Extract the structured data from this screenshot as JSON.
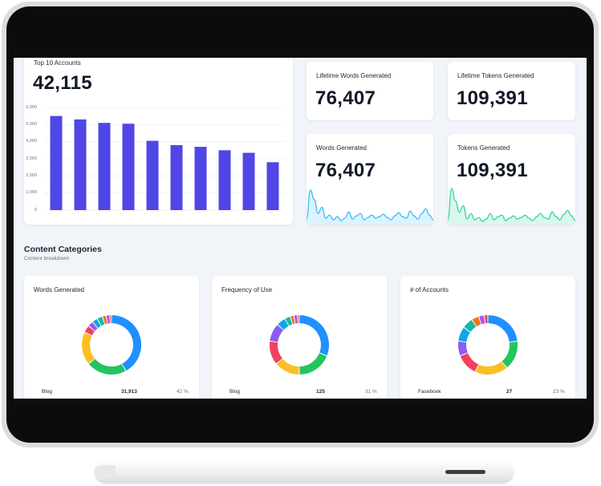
{
  "top_accounts": {
    "title": "Top 10 Accounts",
    "total": "42,115"
  },
  "stats": {
    "lifetime_words_title": "Lifetime Words Generated",
    "lifetime_words_value": "76,407",
    "lifetime_tokens_title": "Lifetime Tokens Generated",
    "lifetime_tokens_value": "109,391",
    "words_title": "Words Generated",
    "words_value": "76,407",
    "tokens_title": "Tokens Generated",
    "tokens_value": "109,391"
  },
  "content": {
    "title": "Content Categories",
    "subtitle": "Content breakdown",
    "cards": [
      {
        "title": "Words Generated",
        "row_label": "Blog",
        "row_value": "31,913",
        "row_pct": "42 %"
      },
      {
        "title": "Frequency of Use",
        "row_label": "Blog",
        "row_value": "125",
        "row_pct": "31 %"
      },
      {
        "title": "# of Accounts",
        "row_label": "Facebook",
        "row_value": "27",
        "row_pct": "23 %"
      }
    ]
  },
  "colors": {
    "bar": "#5046e5",
    "words_line": "#38bdf8",
    "tokens_line": "#34d399",
    "donut": [
      "#1e90ff",
      "#22c55e",
      "#fbbf24",
      "#f43f5e",
      "#8b5cf6",
      "#0ea5e9",
      "#14b8a6",
      "#f97316",
      "#a855f7",
      "#ef4444"
    ]
  },
  "chart_data": [
    {
      "type": "bar",
      "title": "Top 10 Accounts",
      "categories": [
        "",
        "",
        "",
        "",
        "",
        "",
        "",
        "",
        "",
        ""
      ],
      "values": [
        5500,
        5300,
        5100,
        5050,
        4050,
        3800,
        3700,
        3500,
        3350,
        2800
      ],
      "yticks": [
        "6,000",
        "5,000",
        "4,000",
        "3,000",
        "2,000",
        "1,000",
        "0"
      ],
      "ylim": [
        0,
        6000
      ],
      "grid": true
    },
    {
      "type": "area",
      "title": "Words Generated",
      "values": [
        5,
        42,
        30,
        12,
        20,
        6,
        10,
        4,
        8,
        3,
        6,
        14,
        5,
        9,
        12,
        4,
        7,
        10,
        6,
        8,
        11,
        7,
        4,
        9,
        13,
        8,
        6,
        15,
        9,
        5,
        12,
        18,
        10,
        4
      ],
      "ylim": [
        0,
        45
      ]
    },
    {
      "type": "area",
      "title": "Tokens Generated",
      "values": [
        4,
        44,
        28,
        14,
        22,
        5,
        12,
        4,
        7,
        2,
        5,
        12,
        4,
        8,
        10,
        3,
        6,
        9,
        5,
        7,
        10,
        6,
        3,
        8,
        12,
        7,
        5,
        14,
        8,
        4,
        11,
        16,
        9,
        3
      ],
      "ylim": [
        0,
        45
      ]
    },
    {
      "type": "pie",
      "title": "Words Generated",
      "values": [
        42,
        22,
        18,
        4,
        3,
        3,
        3,
        2,
        2,
        1
      ]
    },
    {
      "type": "pie",
      "title": "Frequency of Use",
      "values": [
        31,
        19,
        14,
        13,
        10,
        5,
        3,
        2,
        2,
        1
      ]
    },
    {
      "type": "pie",
      "title": "# of Accounts",
      "values": [
        23,
        16,
        18,
        12,
        8,
        8,
        6,
        4,
        3,
        2
      ]
    }
  ]
}
